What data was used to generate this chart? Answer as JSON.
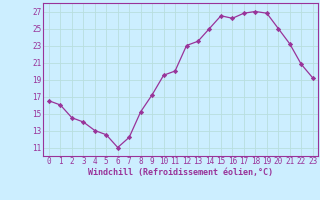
{
  "x": [
    0,
    1,
    2,
    3,
    4,
    5,
    6,
    7,
    8,
    9,
    10,
    11,
    12,
    13,
    14,
    15,
    16,
    17,
    18,
    19,
    20,
    21,
    22,
    23
  ],
  "y": [
    16.5,
    16.0,
    14.5,
    14.0,
    13.0,
    12.5,
    11.0,
    12.2,
    15.2,
    17.2,
    19.5,
    20.0,
    23.0,
    23.5,
    25.0,
    26.5,
    26.2,
    26.8,
    27.0,
    26.8,
    25.0,
    23.2,
    20.8,
    19.2
  ],
  "line_color": "#993399",
  "marker": "D",
  "marker_size": 2.2,
  "bg_color": "#cceeff",
  "grid_color": "#aadddd",
  "axis_color": "#993399",
  "tick_color": "#993399",
  "xlabel": "Windchill (Refroidissement éolien,°C)",
  "xlabel_fontsize": 6.0,
  "tick_fontsize": 5.5,
  "yticks": [
    11,
    13,
    15,
    17,
    19,
    21,
    23,
    25,
    27
  ],
  "xticks": [
    0,
    1,
    2,
    3,
    4,
    5,
    6,
    7,
    8,
    9,
    10,
    11,
    12,
    13,
    14,
    15,
    16,
    17,
    18,
    19,
    20,
    21,
    22,
    23
  ],
  "ylim": [
    10.0,
    28.0
  ],
  "xlim": [
    -0.5,
    23.5
  ]
}
